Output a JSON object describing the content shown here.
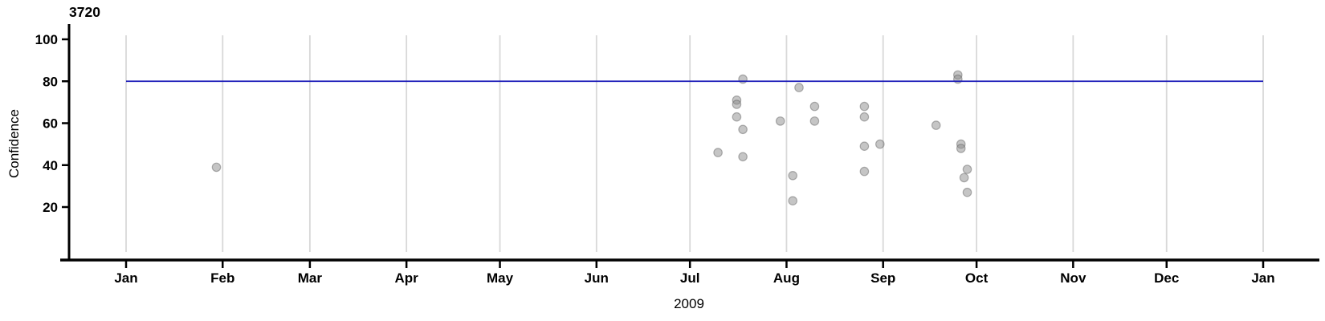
{
  "title": "3720",
  "axes": {
    "y_label": "Confidence",
    "x_label": "2009",
    "y_ticks": [
      20,
      40,
      60,
      80,
      100
    ],
    "x_ticks": [
      "Jan",
      "Feb",
      "Mar",
      "Apr",
      "May",
      "Jun",
      "Jul",
      "Aug",
      "Sep",
      "Oct",
      "Nov",
      "Dec",
      "Jan"
    ]
  },
  "colors": {
    "background": "#ffffff",
    "axis": "#000000",
    "gridline": "#d8d8d8",
    "threshold_line": "#1a1ab8",
    "point_fill": "#8c8c8c",
    "point_stroke": "#5a5a5a",
    "text": "#000000"
  },
  "chart_data": {
    "type": "scatter",
    "title": "3720",
    "xlabel": "2009",
    "ylabel": "Confidence",
    "x_axis_range": [
      "2009-01-01",
      "2010-01-01"
    ],
    "ylim": [
      -5,
      106
    ],
    "y_tick_values": [
      20,
      40,
      60,
      80,
      100
    ],
    "grid": "vertical gridline at the first of each month",
    "legend": "none",
    "threshold_line_y": 80,
    "points": [
      {
        "date": "2009-01-30",
        "value": 39
      },
      {
        "date": "2009-07-10",
        "value": 46
      },
      {
        "date": "2009-07-16",
        "value": 71
      },
      {
        "date": "2009-07-16",
        "value": 69
      },
      {
        "date": "2009-07-16",
        "value": 63
      },
      {
        "date": "2009-07-18",
        "value": 81
      },
      {
        "date": "2009-07-18",
        "value": 57
      },
      {
        "date": "2009-07-18",
        "value": 44
      },
      {
        "date": "2009-07-30",
        "value": 61
      },
      {
        "date": "2009-08-03",
        "value": 35
      },
      {
        "date": "2009-08-03",
        "value": 23
      },
      {
        "date": "2009-08-05",
        "value": 77
      },
      {
        "date": "2009-08-10",
        "value": 68
      },
      {
        "date": "2009-08-10",
        "value": 61
      },
      {
        "date": "2009-08-26",
        "value": 68
      },
      {
        "date": "2009-08-26",
        "value": 63
      },
      {
        "date": "2009-08-26",
        "value": 49
      },
      {
        "date": "2009-08-31",
        "value": 50
      },
      {
        "date": "2009-08-26",
        "value": 37
      },
      {
        "date": "2009-09-18",
        "value": 59
      },
      {
        "date": "2009-09-25",
        "value": 83
      },
      {
        "date": "2009-09-25",
        "value": 81
      },
      {
        "date": "2009-09-26",
        "value": 50
      },
      {
        "date": "2009-09-26",
        "value": 48
      },
      {
        "date": "2009-09-28",
        "value": 38
      },
      {
        "date": "2009-09-27",
        "value": 34
      },
      {
        "date": "2009-09-28",
        "value": 27
      }
    ]
  }
}
